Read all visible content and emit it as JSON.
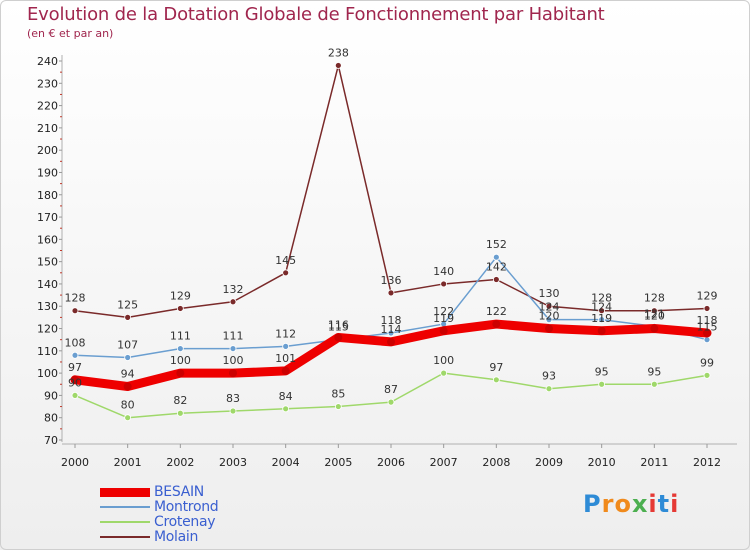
{
  "title": "Evolution de la Dotation Globale de Fonctionnement par Habitant",
  "subtitle": "(en € et par an)",
  "colors": {
    "title": "#a0264e",
    "BESAIN": "#ee0000",
    "Montrond": "#6a9ed0",
    "Crotenay": "#9fd86a",
    "Molain": "#7a2a2a"
  },
  "logo": {
    "text": "Proxiti",
    "letters": [
      "P",
      "r",
      "o",
      "x",
      "i",
      "t",
      "i"
    ]
  },
  "chart_data": {
    "type": "line",
    "title": "Evolution de la Dotation Globale de Fonctionnement par Habitant",
    "ylabel": "(en € et par an)",
    "xlabel": "",
    "categories": [
      "2000",
      "2001",
      "2002",
      "2003",
      "2004",
      "2005",
      "2006",
      "2007",
      "2008",
      "2009",
      "2010",
      "2011",
      "2012"
    ],
    "ylim": [
      70,
      240
    ],
    "yticks": [
      70,
      80,
      90,
      100,
      110,
      120,
      130,
      140,
      150,
      160,
      170,
      180,
      190,
      200,
      210,
      220,
      230,
      240
    ],
    "grid": false,
    "legend_position": "bottom-left",
    "series": [
      {
        "name": "BESAIN",
        "values": [
          97,
          94,
          100,
          100,
          101,
          116,
          114,
          119,
          122,
          120,
          119,
          120,
          118
        ]
      },
      {
        "name": "Montrond",
        "values": [
          108,
          107,
          111,
          111,
          112,
          115,
          118,
          122,
          152,
          124,
          124,
          121,
          115
        ]
      },
      {
        "name": "Crotenay",
        "values": [
          90,
          80,
          82,
          83,
          84,
          85,
          87,
          100,
          97,
          93,
          95,
          95,
          99
        ]
      },
      {
        "name": "Molain",
        "values": [
          128,
          125,
          129,
          132,
          145,
          238,
          136,
          140,
          142,
          130,
          128,
          128,
          129
        ]
      }
    ]
  }
}
